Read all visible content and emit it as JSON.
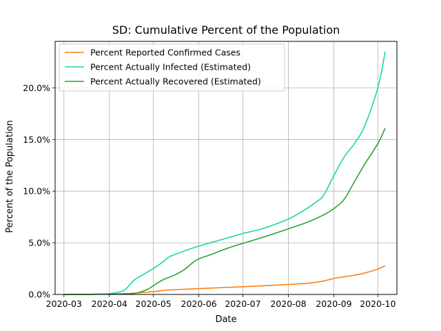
{
  "chart_data": {
    "type": "line",
    "title": "SD: Cumulative Percent of the Population",
    "xlabel": "Date",
    "ylabel": "Percent of the Population",
    "grid": true,
    "legend_position": "top-left",
    "xlim": [
      "2020-02-24",
      "2020-10-14"
    ],
    "ylim": [
      0,
      24.5
    ],
    "x_ticks": [
      "2020-03",
      "2020-04",
      "2020-05",
      "2020-06",
      "2020-07",
      "2020-08",
      "2020-09",
      "2020-10"
    ],
    "y_ticks": [
      "0.0%",
      "5.0%",
      "10.0%",
      "15.0%",
      "20.0%"
    ],
    "y_tick_values": [
      0,
      5,
      10,
      15,
      20
    ],
    "series": [
      {
        "name": "Percent Reported Confirmed Cases",
        "color": "#ff7f0e",
        "x": [
          "2020-03-01",
          "2020-04-01",
          "2020-04-15",
          "2020-04-25",
          "2020-05-01",
          "2020-05-10",
          "2020-05-25",
          "2020-06-01",
          "2020-06-15",
          "2020-07-01",
          "2020-07-15",
          "2020-08-01",
          "2020-08-15",
          "2020-08-25",
          "2020-09-01",
          "2020-09-10",
          "2020-09-20",
          "2020-10-01",
          "2020-10-06"
        ],
        "values": [
          0.0,
          0.03,
          0.1,
          0.2,
          0.27,
          0.42,
          0.52,
          0.57,
          0.65,
          0.75,
          0.84,
          0.97,
          1.1,
          1.3,
          1.55,
          1.75,
          2.0,
          2.45,
          2.8
        ]
      },
      {
        "name": "Percent Actually Infected (Estimated)",
        "color": "#1ad89b",
        "x": [
          "2020-03-01",
          "2020-03-25",
          "2020-04-01",
          "2020-04-08",
          "2020-04-12",
          "2020-04-18",
          "2020-04-25",
          "2020-05-03",
          "2020-05-08",
          "2020-05-12",
          "2020-05-20",
          "2020-05-28",
          "2020-06-05",
          "2020-06-15",
          "2020-07-01",
          "2020-07-15",
          "2020-08-01",
          "2020-08-10",
          "2020-08-20",
          "2020-08-25",
          "2020-09-01",
          "2020-09-08",
          "2020-09-15",
          "2020-09-22",
          "2020-10-01",
          "2020-10-06"
        ],
        "values": [
          0.0,
          0.02,
          0.08,
          0.25,
          0.5,
          1.4,
          2.0,
          2.7,
          3.2,
          3.65,
          4.1,
          4.5,
          4.85,
          5.25,
          5.9,
          6.4,
          7.3,
          8.0,
          8.95,
          9.6,
          11.5,
          13.3,
          14.6,
          16.3,
          20.0,
          23.5
        ]
      },
      {
        "name": "Percent Actually Recovered (Estimated)",
        "color": "#2ca02c",
        "x": [
          "2020-03-01",
          "2020-04-10",
          "2020-04-20",
          "2020-04-27",
          "2020-05-02",
          "2020-05-08",
          "2020-05-15",
          "2020-05-22",
          "2020-05-28",
          "2020-06-01",
          "2020-06-10",
          "2020-06-20",
          "2020-07-01",
          "2020-07-15",
          "2020-08-01",
          "2020-08-15",
          "2020-08-25",
          "2020-09-01",
          "2020-09-08",
          "2020-09-15",
          "2020-09-22",
          "2020-10-01",
          "2020-10-06"
        ],
        "values": [
          0.0,
          0.05,
          0.15,
          0.5,
          0.95,
          1.45,
          1.85,
          2.4,
          3.1,
          3.45,
          3.9,
          4.45,
          4.95,
          5.55,
          6.35,
          7.05,
          7.7,
          8.3,
          9.2,
          10.9,
          12.6,
          14.6,
          16.1
        ]
      }
    ]
  }
}
